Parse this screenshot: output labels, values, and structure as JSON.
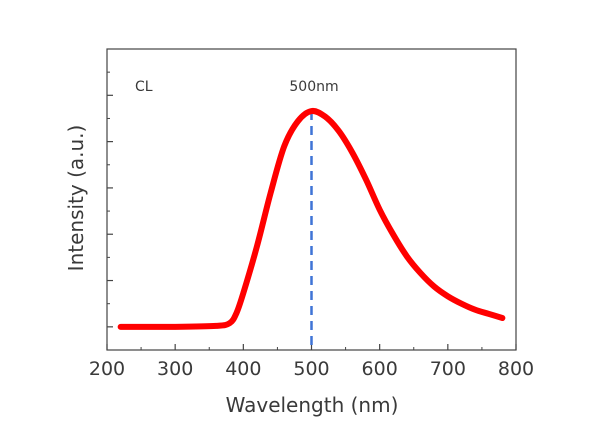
{
  "chart_data": {
    "type": "line",
    "title": "",
    "xlabel": "Wavelength (nm)",
    "ylabel": "Intensity (a.u.)",
    "xlim": [
      200,
      800
    ],
    "ylim": [
      -0.5,
      6
    ],
    "xticks": [
      200,
      300,
      400,
      500,
      600,
      700,
      800
    ],
    "xtick_labels": [
      "200",
      "300",
      "400",
      "500",
      "600",
      "700",
      "800"
    ],
    "yticks_major": [
      0,
      1,
      2,
      3,
      4,
      5
    ],
    "ytick_labels_shown": false,
    "grid": false,
    "annotations": [
      {
        "text": "CL"
      },
      {
        "text": "500nm",
        "vline_x": 500,
        "vline_color": "#3f74d6",
        "vline_style": "dashed"
      }
    ],
    "series": [
      {
        "color": "#ff0000",
        "x": [
          220,
          300,
          360,
          380,
          390,
          400,
          420,
          440,
          460,
          480,
          500,
          520,
          540,
          560,
          580,
          600,
          620,
          640,
          660,
          680,
          700,
          720,
          740,
          760,
          780
        ],
        "y": [
          0,
          0,
          0.02,
          0.08,
          0.3,
          0.73,
          1.74,
          2.89,
          3.9,
          4.44,
          4.66,
          4.54,
          4.23,
          3.76,
          3.18,
          2.53,
          1.99,
          1.52,
          1.16,
          0.87,
          0.66,
          0.5,
          0.37,
          0.28,
          0.19
        ]
      }
    ]
  }
}
